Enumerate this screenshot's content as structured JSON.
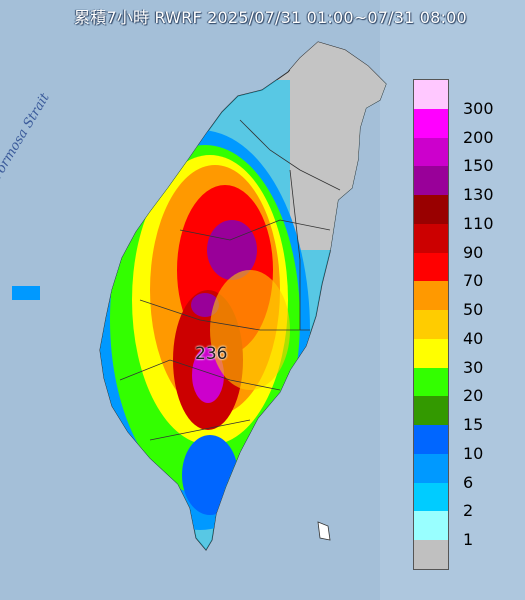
{
  "title": "累積7小時 RWRF 2025/07/31 01:00~07/31 08:00",
  "sea_label": "Formosa Strait",
  "peak_label": "236",
  "legend": [
    {
      "label": "300",
      "color": "#ffc8ff"
    },
    {
      "label": "200",
      "color": "#ff00ff"
    },
    {
      "label": "150",
      "color": "#cc00cc"
    },
    {
      "label": "130",
      "color": "#990099"
    },
    {
      "label": "110",
      "color": "#990000"
    },
    {
      "label": "90",
      "color": "#cc0000"
    },
    {
      "label": "70",
      "color": "#ff0000"
    },
    {
      "label": "50",
      "color": "#ff9900"
    },
    {
      "label": "40",
      "color": "#ffcc00"
    },
    {
      "label": "30",
      "color": "#ffff00"
    },
    {
      "label": "20",
      "color": "#33ff00"
    },
    {
      "label": "15",
      "color": "#339900"
    },
    {
      "label": "10",
      "color": "#0066ff"
    },
    {
      "label": "6",
      "color": "#0099ff"
    },
    {
      "label": "2",
      "color": "#00ccff"
    },
    {
      "label": "1",
      "color": "#99ffff"
    },
    {
      "label": "",
      "color": "#c0c0c0"
    }
  ]
}
